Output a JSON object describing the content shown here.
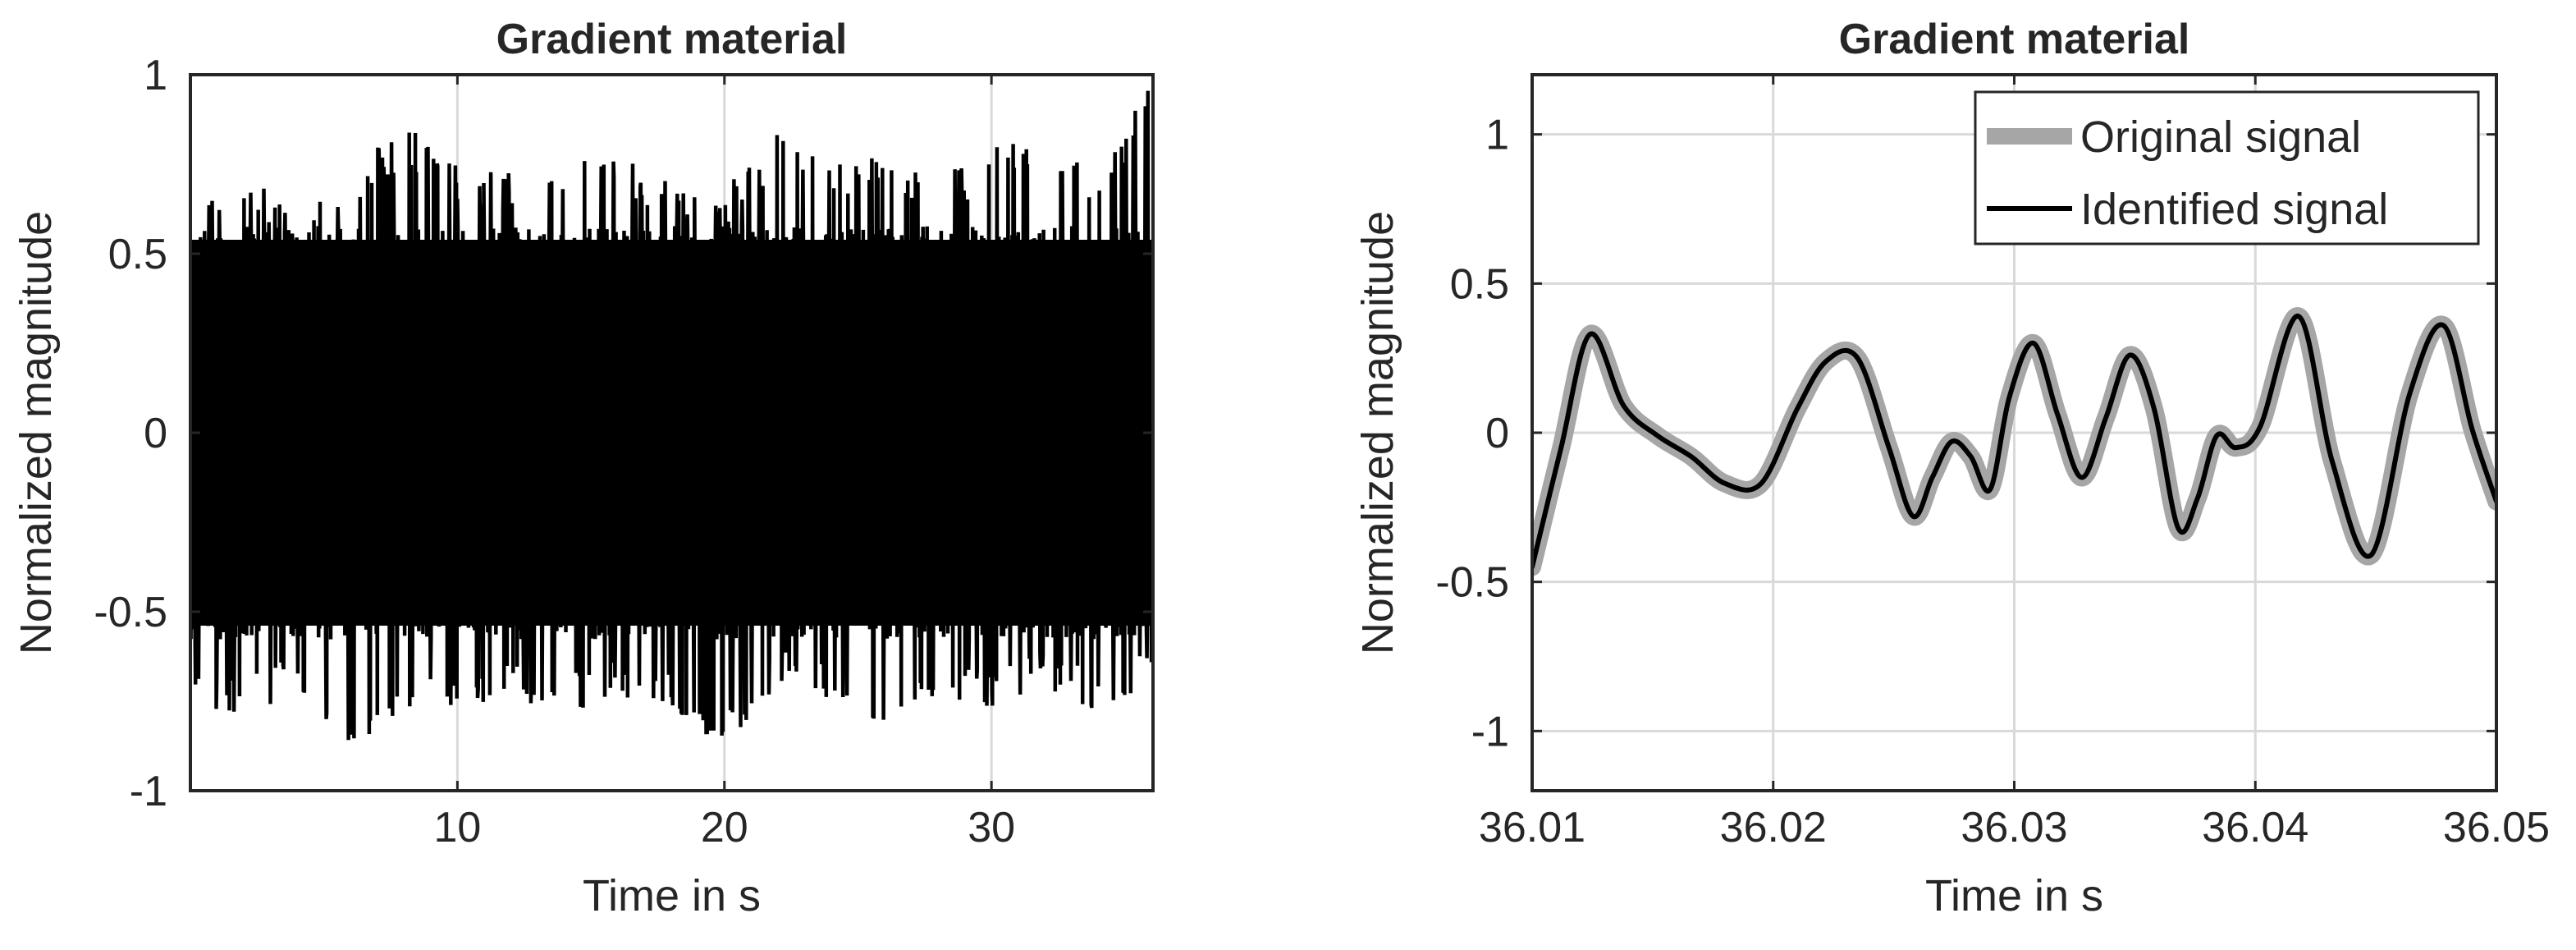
{
  "chart_data": [
    {
      "type": "line",
      "title": "Gradient material",
      "xlabel": "Time in s",
      "ylabel": "Normalized magnitude",
      "xlim": [
        0,
        36.05
      ],
      "ylim": [
        -1,
        1
      ],
      "xticks": [
        10,
        20,
        30
      ],
      "xtick_labels": [
        "10",
        "20",
        "30"
      ],
      "yticks": [
        -1,
        -0.5,
        0,
        0.5,
        1
      ],
      "ytick_labels": [
        "-1",
        "-0.5",
        "0",
        "0.5",
        "1"
      ],
      "grid": true,
      "line_color": "#000000",
      "envelope": {
        "x": [
          0,
          2,
          4,
          6,
          8,
          10,
          12,
          14,
          16,
          18,
          20,
          22,
          24,
          26,
          28,
          30,
          32,
          34,
          36.05
        ],
        "upper": [
          0.66,
          0.72,
          0.62,
          0.73,
          0.88,
          0.75,
          0.73,
          0.8,
          0.77,
          0.71,
          0.68,
          0.86,
          0.75,
          0.81,
          0.72,
          0.8,
          0.85,
          0.75,
          1.0
        ],
        "lower": [
          -0.76,
          -0.8,
          -0.72,
          -0.91,
          -0.79,
          -0.82,
          -0.76,
          -0.8,
          -0.75,
          -0.78,
          -0.9,
          -0.7,
          -0.76,
          -0.82,
          -0.74,
          -0.77,
          -0.71,
          -0.79,
          -0.69
        ],
        "core": 0.55
      }
    },
    {
      "type": "line",
      "title": "Gradient material",
      "xlabel": "Time in s",
      "ylabel": "Normalized magnitude",
      "xlim": [
        36.01,
        36.05
      ],
      "ylim": [
        -1.2,
        1.2
      ],
      "xticks": [
        36.01,
        36.02,
        36.03,
        36.04,
        36.05
      ],
      "xtick_labels": [
        "36.01",
        "36.02",
        "36.03",
        "36.04",
        "36.05"
      ],
      "yticks": [
        -1,
        -0.5,
        0,
        0.5,
        1
      ],
      "ytick_labels": [
        "-1",
        "-0.5",
        "0",
        "0.5",
        "1"
      ],
      "grid": true,
      "legend": "top-right",
      "x": [
        36.01,
        36.0112,
        36.0124,
        36.0138,
        36.0152,
        36.0166,
        36.018,
        36.0195,
        36.021,
        36.0222,
        36.0235,
        36.0248,
        36.0258,
        36.0266,
        36.0274,
        36.0282,
        36.029,
        36.0298,
        36.0308,
        36.0318,
        36.0328,
        36.0338,
        36.0348,
        36.0358,
        36.0368,
        36.0376,
        36.0384,
        36.0392,
        36.0402,
        36.0418,
        36.0432,
        36.0448,
        36.0464,
        36.0478,
        36.049,
        36.05
      ],
      "series": [
        {
          "name": "Original signal",
          "color": "#a6a6a6",
          "values": [
            -0.45,
            -0.05,
            0.33,
            0.09,
            -0.01,
            -0.08,
            -0.17,
            -0.17,
            0.08,
            0.24,
            0.25,
            -0.05,
            -0.28,
            -0.15,
            -0.03,
            -0.08,
            -0.19,
            0.12,
            0.3,
            0.06,
            -0.15,
            0.05,
            0.26,
            0.08,
            -0.32,
            -0.22,
            -0.01,
            -0.05,
            0.02,
            0.39,
            -0.1,
            -0.41,
            0.13,
            0.36,
            0.01,
            -0.23
          ]
        },
        {
          "name": "Identified signal",
          "color": "#000000",
          "values": [
            -0.45,
            -0.05,
            0.33,
            0.09,
            -0.01,
            -0.08,
            -0.17,
            -0.17,
            0.08,
            0.24,
            0.25,
            -0.05,
            -0.28,
            -0.15,
            -0.03,
            -0.08,
            -0.19,
            0.12,
            0.3,
            0.06,
            -0.15,
            0.05,
            0.26,
            0.08,
            -0.32,
            -0.22,
            -0.01,
            -0.05,
            0.02,
            0.39,
            -0.1,
            -0.41,
            0.13,
            0.36,
            0.01,
            -0.23
          ]
        }
      ]
    }
  ]
}
